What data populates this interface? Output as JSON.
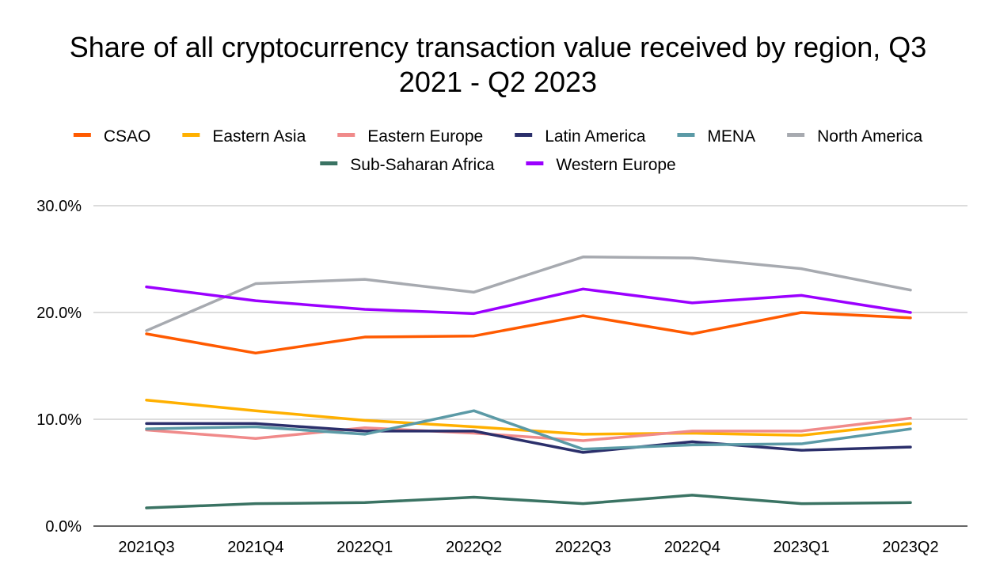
{
  "chart_data": {
    "type": "line",
    "title": "Share of all cryptocurrency transaction value received by region, Q3 2021 - Q2 2023",
    "title_lines": [
      "Share of all cryptocurrency transaction value received by region, Q3",
      "2021 - Q2 2023"
    ],
    "xlabel": "",
    "ylabel": "",
    "categories": [
      "2021Q3",
      "2021Q4",
      "2022Q1",
      "2022Q2",
      "2022Q3",
      "2022Q4",
      "2023Q1",
      "2023Q2"
    ],
    "ylim": [
      0,
      30
    ],
    "yticks": [
      0,
      10,
      20,
      30
    ],
    "ytick_labels": [
      "0.0%",
      "10.0%",
      "20.0%",
      "30.0%"
    ],
    "grid": true,
    "legend_position": "top",
    "series": [
      {
        "name": "CSAO",
        "color": "#ff5a00",
        "values": [
          18.0,
          16.2,
          17.7,
          17.8,
          19.7,
          18.0,
          20.0,
          19.5
        ]
      },
      {
        "name": "Eastern Asia",
        "color": "#ffb000",
        "values": [
          11.8,
          10.8,
          9.9,
          9.3,
          8.6,
          8.7,
          8.5,
          9.6
        ]
      },
      {
        "name": "Eastern Europe",
        "color": "#f08a8a",
        "values": [
          9.0,
          8.2,
          9.2,
          8.7,
          8.0,
          8.9,
          8.9,
          10.1
        ]
      },
      {
        "name": "Latin America",
        "color": "#2b2f6b",
        "values": [
          9.6,
          9.6,
          8.9,
          8.9,
          6.9,
          7.9,
          7.1,
          7.4
        ]
      },
      {
        "name": "MENA",
        "color": "#5b9aa6",
        "values": [
          9.1,
          9.3,
          8.6,
          10.8,
          7.2,
          7.6,
          7.7,
          9.1
        ]
      },
      {
        "name": "North America",
        "color": "#a7aab0",
        "values": [
          18.3,
          22.7,
          23.1,
          21.9,
          25.2,
          25.1,
          24.1,
          22.1
        ]
      },
      {
        "name": "Sub-Saharan Africa",
        "color": "#3a7363",
        "values": [
          1.7,
          2.1,
          2.2,
          2.7,
          2.1,
          2.9,
          2.1,
          2.2
        ]
      },
      {
        "name": "Western Europe",
        "color": "#9b00ff",
        "values": [
          22.4,
          21.1,
          20.3,
          19.9,
          22.2,
          20.9,
          21.6,
          20.0
        ]
      }
    ]
  }
}
